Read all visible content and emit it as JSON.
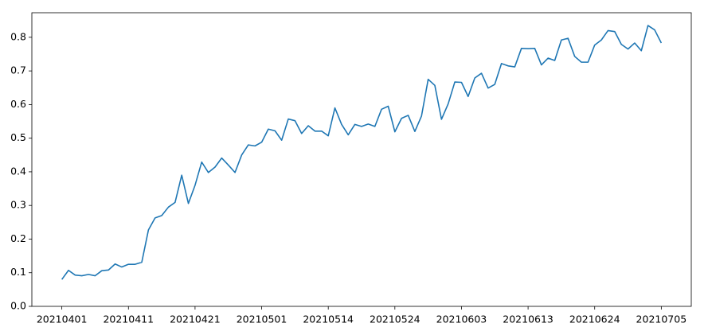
{
  "chart_data": {
    "type": "line",
    "color": "#1f77b4",
    "categories": [
      "20210401",
      null,
      null,
      null,
      null,
      null,
      null,
      null,
      null,
      null,
      "20210411",
      null,
      null,
      null,
      null,
      null,
      null,
      null,
      null,
      null,
      "20210421",
      null,
      null,
      null,
      null,
      null,
      null,
      null,
      null,
      null,
      "20210501",
      null,
      null,
      null,
      null,
      null,
      null,
      null,
      null,
      null,
      "20210514",
      null,
      null,
      null,
      null,
      null,
      null,
      null,
      null,
      null,
      "20210524",
      null,
      null,
      null,
      null,
      null,
      null,
      null,
      null,
      null,
      "20210603",
      null,
      null,
      null,
      null,
      null,
      null,
      null,
      null,
      null,
      "20210613",
      null,
      null,
      null,
      null,
      null,
      null,
      null,
      null,
      null,
      "20210624",
      null,
      null,
      null,
      null,
      null,
      null,
      null,
      null,
      null,
      "20210705"
    ],
    "values": [
      0.08,
      0.107,
      0.093,
      0.091,
      0.095,
      0.091,
      0.106,
      0.108,
      0.126,
      0.117,
      0.125,
      0.125,
      0.131,
      0.227,
      0.263,
      0.27,
      0.295,
      0.309,
      0.39,
      0.306,
      0.36,
      0.429,
      0.398,
      0.414,
      0.441,
      0.42,
      0.398,
      0.45,
      0.48,
      0.477,
      0.488,
      0.527,
      0.522,
      0.494,
      0.557,
      0.552,
      0.514,
      0.537,
      0.521,
      0.521,
      0.507,
      0.59,
      0.541,
      0.51,
      0.541,
      0.535,
      0.542,
      0.535,
      0.586,
      0.595,
      0.519,
      0.559,
      0.568,
      0.52,
      0.566,
      0.675,
      0.657,
      0.556,
      0.602,
      0.667,
      0.666,
      0.624,
      0.679,
      0.693,
      0.649,
      0.66,
      0.722,
      0.715,
      0.712,
      0.767,
      0.766,
      0.767,
      0.718,
      0.738,
      0.731,
      0.792,
      0.797,
      0.743,
      0.726,
      0.726,
      0.777,
      0.792,
      0.82,
      0.817,
      0.779,
      0.765,
      0.783,
      0.76,
      0.835,
      0.822,
      0.783
    ],
    "ylim": [
      0,
      0.873
    ],
    "yticks": [
      {
        "value": 0,
        "label": "0.0"
      },
      0.1,
      0.2,
      0.3,
      0.4,
      0.5,
      0.6,
      0.7,
      0.8
    ]
  }
}
